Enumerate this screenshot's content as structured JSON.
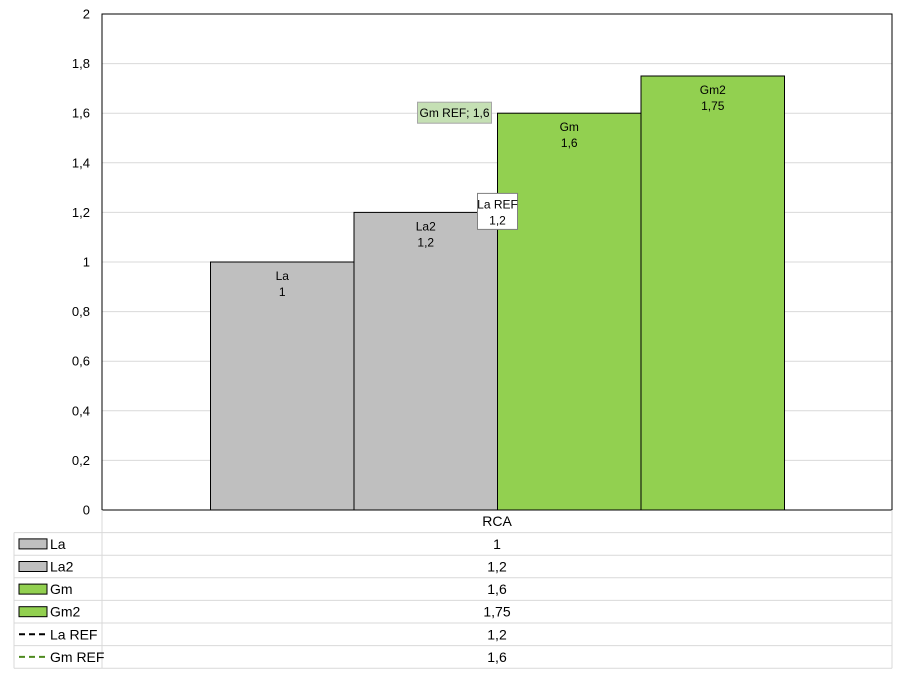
{
  "chart_data": {
    "type": "bar",
    "categories": [
      "RCA"
    ],
    "series": [
      {
        "name": "La",
        "values": [
          1
        ],
        "color": "#bfbfbf"
      },
      {
        "name": "La2",
        "values": [
          1.2
        ],
        "color": "#bfbfbf"
      },
      {
        "name": "Gm",
        "values": [
          1.6
        ],
        "color": "#92d050"
      },
      {
        "name": "Gm2",
        "values": [
          1.75
        ],
        "color": "#92d050"
      }
    ],
    "reference_lines": [
      {
        "name": "La REF",
        "value": 1.2,
        "style": "dashed",
        "color": "#000000",
        "label_text": "La REF\n1,2"
      },
      {
        "name": "Gm REF",
        "value": 1.6,
        "style": "dashed",
        "color": "#4e8a1f",
        "label_text": "Gm REF; 1,6"
      }
    ],
    "bar_labels": [
      "La\n1",
      "La2\n1,2",
      "Gm\n1,6",
      "Gm2\n1,75"
    ],
    "ylim": [
      0,
      2
    ],
    "yticks": [
      "0",
      "0,2",
      "0,4",
      "0,6",
      "0,8",
      "1",
      "1,2",
      "1,4",
      "1,6",
      "1,8",
      "2"
    ],
    "grid": true,
    "data_table": {
      "header": "RCA",
      "rows": [
        {
          "name": "La",
          "value": "1",
          "key": "bar",
          "color": "#bfbfbf"
        },
        {
          "name": "La2",
          "value": "1,2",
          "key": "bar",
          "color": "#bfbfbf"
        },
        {
          "name": "Gm",
          "value": "1,6",
          "key": "bar",
          "color": "#92d050"
        },
        {
          "name": "Gm2",
          "value": "1,75",
          "key": "bar",
          "color": "#92d050"
        },
        {
          "name": "La REF",
          "value": "1,2",
          "key": "dashed",
          "color": "#000000"
        },
        {
          "name": "Gm REF",
          "value": "1,6",
          "key": "dashed",
          "color": "#4e8a1f"
        }
      ]
    }
  },
  "colors": {
    "grid": "#d9d9d9",
    "axis": "#000000",
    "gm_ref_label_bg": "#c5e0b4",
    "table_border": "#d9d9d9"
  }
}
